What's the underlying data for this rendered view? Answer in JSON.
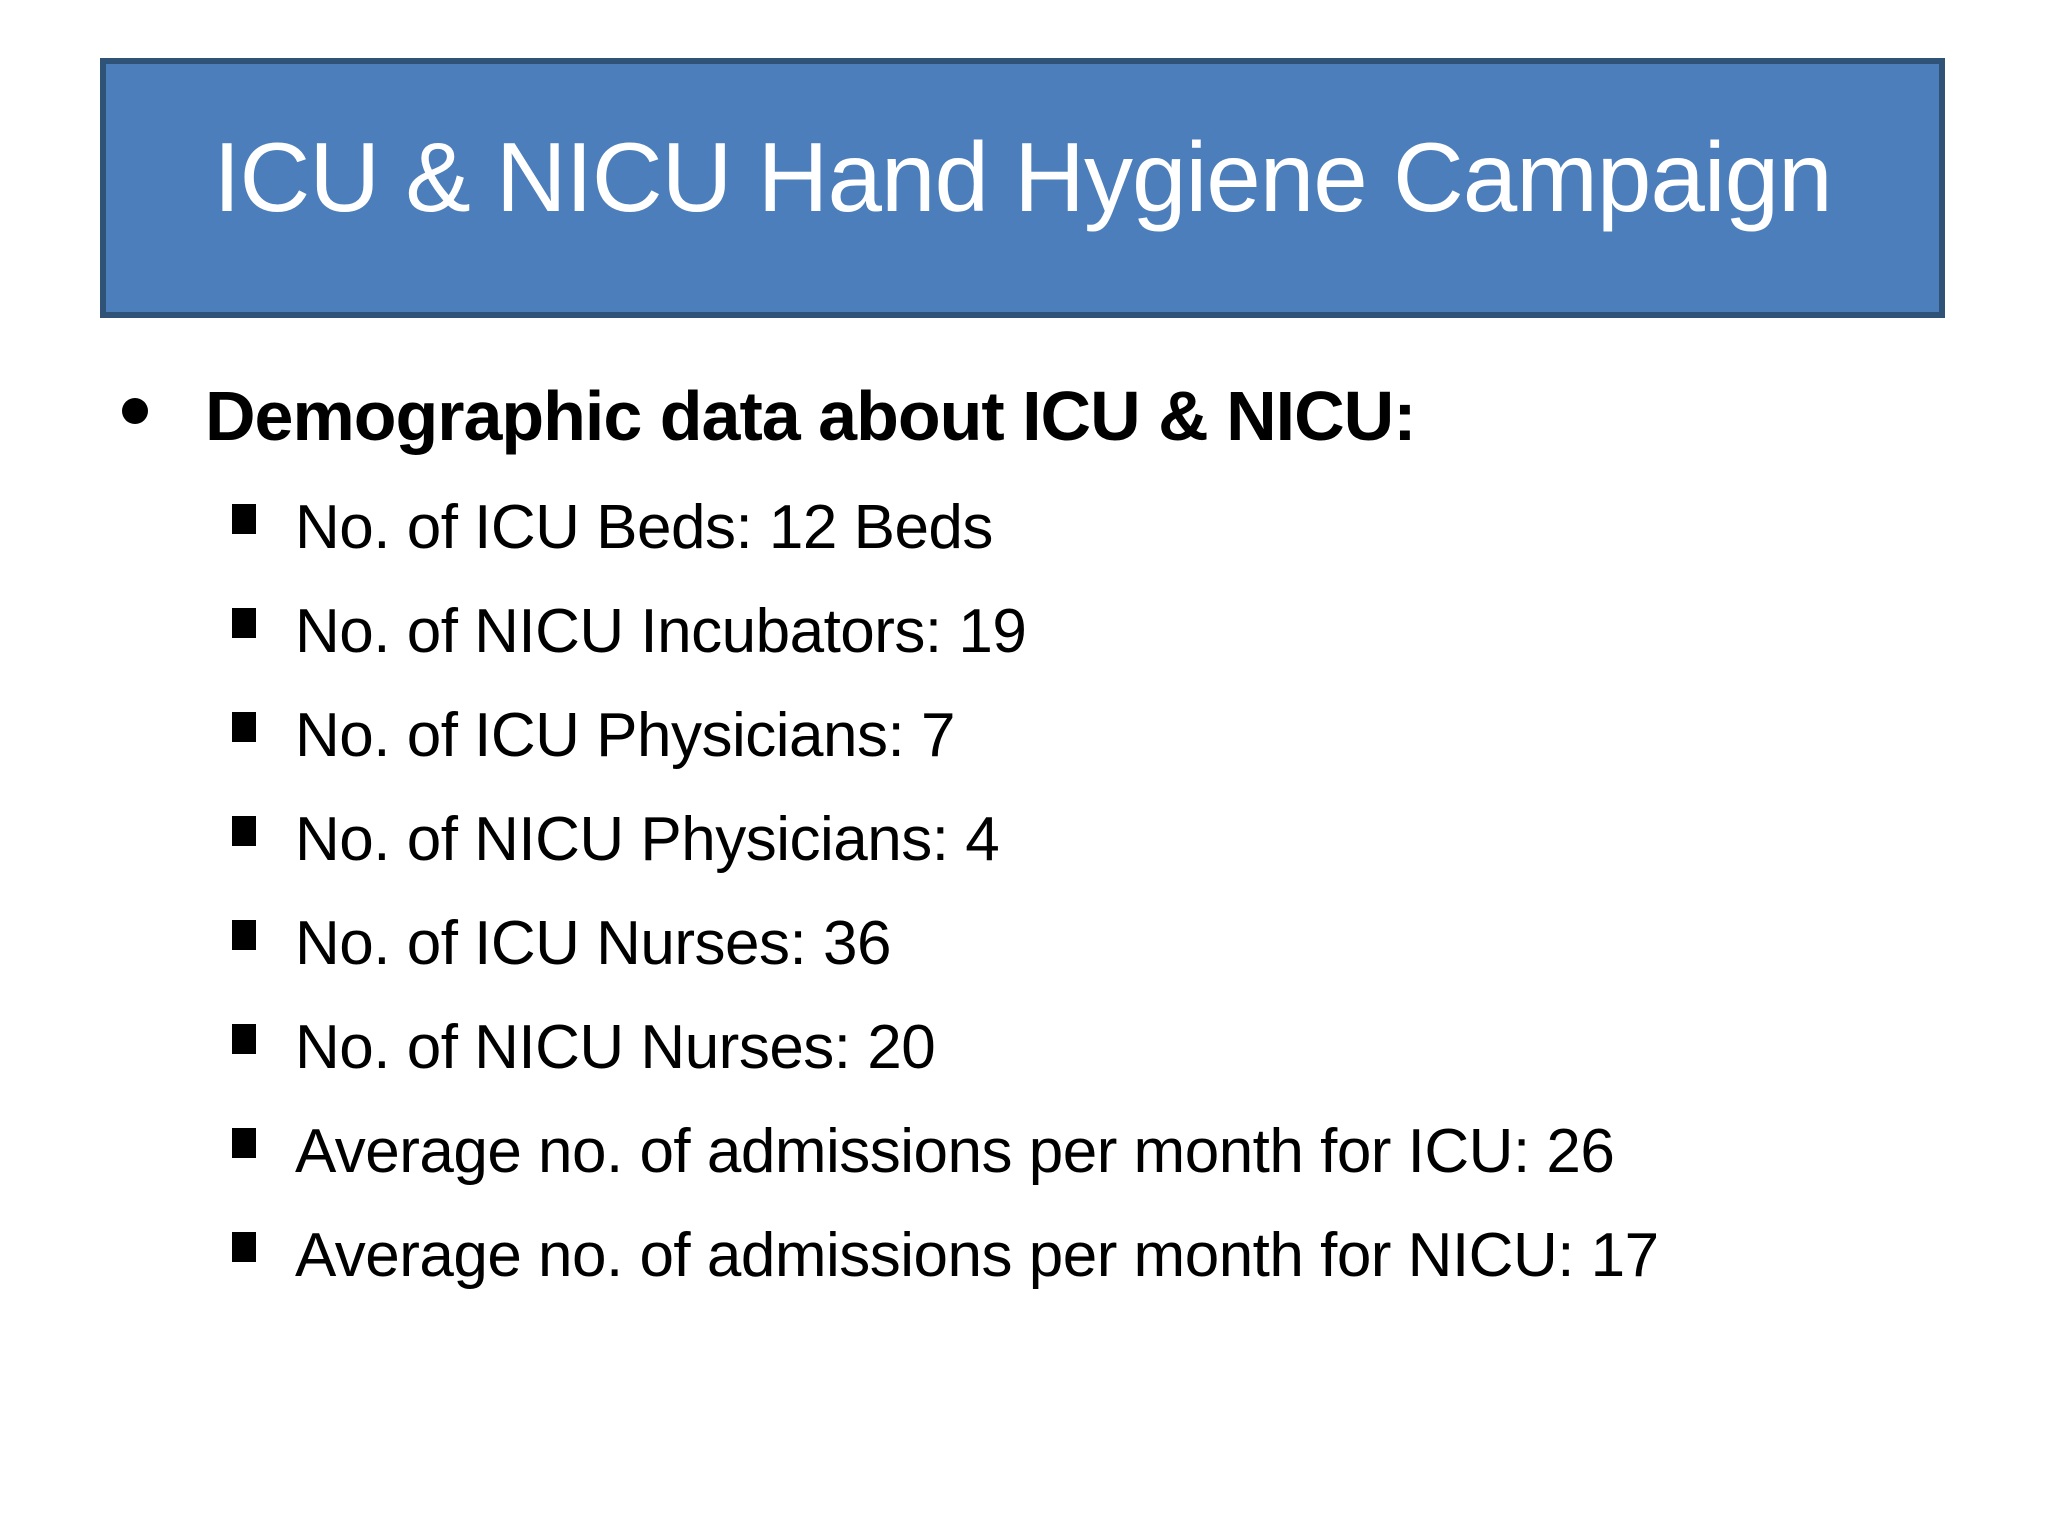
{
  "slide": {
    "title": "ICU & NICU Hand Hygiene Campaign",
    "body": {
      "heading": "Demographic data about ICU & NICU:",
      "items": [
        "No. of ICU Beds: 12 Beds",
        "No. of NICU Incubators: 19",
        "No. of ICU Physicians: 7",
        "No. of NICU Physicians: 4",
        "No. of ICU Nurses: 36",
        "No. of NICU Nurses: 20",
        "Average no. of admissions per month for ICU: 26",
        "Average no. of admissions per month for NICU: 17"
      ]
    },
    "icons": {
      "heading_bullet": "filled-circle",
      "sub_bullet": "filled-square"
    },
    "colors": {
      "title_fill": "#4C7EBB",
      "title_border": "#2F5377",
      "title_text": "#FFFFFF",
      "body_text": "#000000",
      "page_background": "#FFFFFF"
    }
  }
}
